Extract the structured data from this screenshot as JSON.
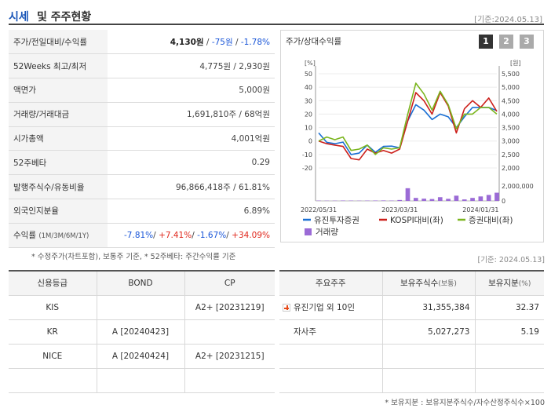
{
  "header": {
    "title_main": "시세",
    "title_rest": "및 주주현황",
    "as_of": "[기준:2024.05.13]"
  },
  "summary": {
    "rows": [
      {
        "label": "주가/전일대비/수익률",
        "price": "4,130원",
        "sep1": " / ",
        "change": "-75원",
        "sep2": " / ",
        "rate": "-1.78%"
      },
      {
        "label": "52Weeks 최고/최저",
        "value": "4,775원 / 2,930원"
      },
      {
        "label": "액면가",
        "value": "5,000원"
      },
      {
        "label": "거래량/거래대금",
        "value": "1,691,810주 / 68억원"
      },
      {
        "label": "시가총액",
        "value": "4,001억원"
      },
      {
        "label": "52주베타",
        "value": "0.29"
      },
      {
        "label": "발행주식수/유동비율",
        "value": "96,866,418주 / 61.81%"
      },
      {
        "label": "외국인지분율",
        "value": "6.89%"
      },
      {
        "label": "수익률",
        "label_small": "(1M/3M/6M/1Y)",
        "r1": "-7.81%",
        "r2": "+7.41%",
        "r3": "-1.67%",
        "r4": "+34.09%"
      }
    ],
    "note": "* 수정주가(차트포함), 보통주 기준, * 52주베타: 주간수익률 기준"
  },
  "chart_panel": {
    "title": "주가/상대수익률",
    "tabs": [
      "1",
      "2",
      "3"
    ],
    "active_tab": "1",
    "as_of": "[기준: 2024.05.13]"
  },
  "chart_data": {
    "type": "line",
    "left_axis": {
      "unit": "[%]",
      "ticks": [
        50,
        40,
        30,
        20,
        10,
        0,
        -10,
        -20
      ],
      "ylim": [
        -20,
        50
      ]
    },
    "right_axis": {
      "unit": "[원]",
      "ticks": [
        "5,500",
        "5,000",
        "4,500",
        "4,000",
        "3,500",
        "3,000",
        "2,500",
        "2,000"
      ],
      "ylim": [
        2000,
        5500
      ]
    },
    "volume_axis": {
      "ticks": [
        "2,000,000",
        "0"
      ],
      "ylim": [
        0,
        2000000
      ]
    },
    "x_ticks": [
      "2022/05/31",
      "2023/03/31",
      "2024/01/31"
    ],
    "x_tick_index": [
      0,
      10,
      20
    ],
    "series": [
      {
        "name": "유진투자증권",
        "color": "#1a6fd4",
        "axis": "right",
        "values": [
          3300,
          2950,
          2900,
          2960,
          2500,
          2550,
          2850,
          2580,
          2800,
          2810,
          2750,
          3750,
          4350,
          4150,
          3800,
          4000,
          3900,
          3500,
          3900,
          4250,
          4250,
          4250,
          4130
        ]
      },
      {
        "name": "KOSPI대비(좌)",
        "color": "#cc1f1a",
        "axis": "left",
        "values": [
          0,
          -2,
          -3,
          -4,
          -13,
          -14,
          -6,
          -9,
          -7,
          -9,
          -6,
          15,
          36,
          30,
          20,
          36,
          26,
          6,
          24,
          30,
          25,
          32,
          22
        ]
      },
      {
        "name": "증권대비(좌)",
        "color": "#7ab51d",
        "axis": "left",
        "values": [
          0,
          3,
          1,
          3,
          -7,
          -6,
          -3,
          -10,
          -5,
          -6,
          -5,
          20,
          43,
          35,
          23,
          37,
          27,
          9,
          20,
          20,
          25,
          25,
          20
        ]
      }
    ],
    "volume": {
      "name": "거래량",
      "color": "#9b6bd6",
      "values": [
        40000,
        30000,
        30000,
        50000,
        40000,
        30000,
        40000,
        50000,
        60000,
        40000,
        120000,
        1700000,
        400000,
        300000,
        250000,
        500000,
        280000,
        700000,
        200000,
        400000,
        600000,
        800000,
        1100000
      ]
    }
  },
  "credit": {
    "headers": [
      "신용등급",
      "BOND",
      "CP"
    ],
    "rows": [
      [
        "KIS",
        "",
        "A2+ [20231219]"
      ],
      [
        "KR",
        "A [20240423]",
        ""
      ],
      [
        "NICE",
        "A [20240424]",
        "A2+ [20231215]"
      ],
      [
        "",
        "",
        ""
      ]
    ]
  },
  "holders": {
    "headers": [
      "주요주주",
      "보유주식수",
      "(보통)",
      "보유지분",
      "(%)"
    ],
    "rows": [
      {
        "name": "유진기업 외 10인",
        "expand": true,
        "shares": "31,355,384",
        "pct": "32.37"
      },
      {
        "name": "자사주",
        "expand": false,
        "shares": "5,027,273",
        "pct": "5.19"
      },
      {
        "name": "",
        "expand": false,
        "shares": "",
        "pct": ""
      },
      {
        "name": "",
        "expand": false,
        "shares": "",
        "pct": ""
      }
    ],
    "note": "* 보유지분 : 보유지분주식수/자수산정주식수×100"
  }
}
